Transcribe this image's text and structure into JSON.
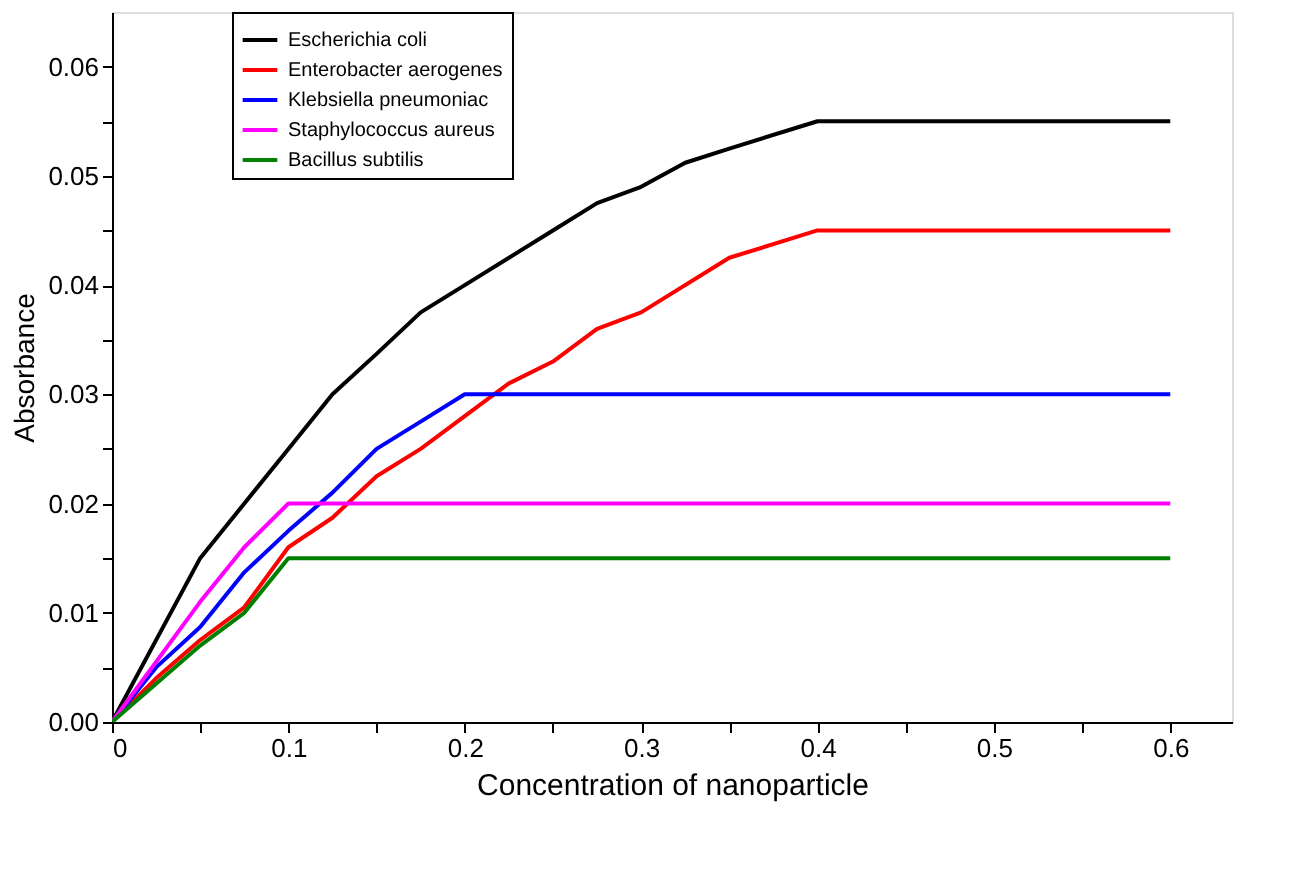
{
  "chart_data": {
    "type": "line",
    "xlabel": "Concentration of nanoparticle",
    "ylabel": "Absorbance",
    "xlim": [
      0,
      0.635
    ],
    "ylim": [
      0,
      0.065
    ],
    "xticks": [
      0,
      {
        "value": 0.05,
        "label": null
      },
      0.1,
      {
        "value": 0.15,
        "label": null
      },
      0.2,
      {
        "value": 0.25,
        "label": null
      },
      0.3,
      {
        "value": 0.35,
        "label": null
      },
      0.4,
      {
        "value": 0.45,
        "label": null
      },
      0.5,
      {
        "value": 0.55,
        "label": null
      },
      0.6
    ],
    "yticks": [
      {
        "value": 0,
        "label": "0.00"
      },
      {
        "value": 0.005,
        "label": null
      },
      {
        "value": 0.01,
        "label": "0.01"
      },
      {
        "value": 0.015,
        "label": null
      },
      {
        "value": 0.02,
        "label": "0.02"
      },
      {
        "value": 0.025,
        "label": null
      },
      {
        "value": 0.03,
        "label": "0.03"
      },
      {
        "value": 0.035,
        "label": null
      },
      {
        "value": 0.04,
        "label": "0.04"
      },
      {
        "value": 0.045,
        "label": null
      },
      {
        "value": 0.05,
        "label": "0.05"
      },
      {
        "value": 0.055,
        "label": null
      },
      {
        "value": 0.06,
        "label": "0.06"
      }
    ],
    "grid": false,
    "legend": "top left",
    "marker": "none",
    "line_style": "solid",
    "series": [
      {
        "name": "Escherichia coli",
        "color": "#000000",
        "x": [
          0,
          0.05,
          0.1,
          0.125,
          0.15,
          0.175,
          0.2,
          0.25,
          0.275,
          0.3,
          0.325,
          0.35,
          0.4,
          0.6
        ],
        "values": [
          0,
          0.015,
          0.025,
          0.03,
          0.0337,
          0.0375,
          0.04,
          0.045,
          0.0475,
          0.049,
          0.0512,
          0.0525,
          0.055,
          0.055
        ]
      },
      {
        "name": "Enterobacter aerogenes",
        "color": "#ff0000",
        "x": [
          0,
          0.025,
          0.05,
          0.075,
          0.1,
          0.125,
          0.15,
          0.175,
          0.2,
          0.225,
          0.25,
          0.275,
          0.3,
          0.35,
          0.4,
          0.6
        ],
        "values": [
          0,
          0.004,
          0.0075,
          0.0105,
          0.016,
          0.0187,
          0.0225,
          0.025,
          0.028,
          0.031,
          0.033,
          0.036,
          0.0375,
          0.0425,
          0.045,
          0.045
        ]
      },
      {
        "name": "Klebsiella pneumoniac",
        "color": "#0000ff",
        "x": [
          0,
          0.025,
          0.05,
          0.075,
          0.1,
          0.125,
          0.15,
          0.175,
          0.2,
          0.6
        ],
        "values": [
          0,
          0.005,
          0.0087,
          0.0137,
          0.0175,
          0.021,
          0.025,
          0.0275,
          0.03,
          0.03
        ]
      },
      {
        "name": "Staphylococcus aureus",
        "color": "#ff00ff",
        "x": [
          0,
          0.05,
          0.075,
          0.1,
          0.6
        ],
        "values": [
          0,
          0.011,
          0.016,
          0.02,
          0.02
        ]
      },
      {
        "name": "Bacillus subtilis",
        "color": "#008000",
        "x": [
          0,
          0.025,
          0.05,
          0.075,
          0.1,
          0.6
        ],
        "values": [
          0,
          0.0035,
          0.007,
          0.01,
          0.015,
          0.015
        ]
      }
    ]
  }
}
